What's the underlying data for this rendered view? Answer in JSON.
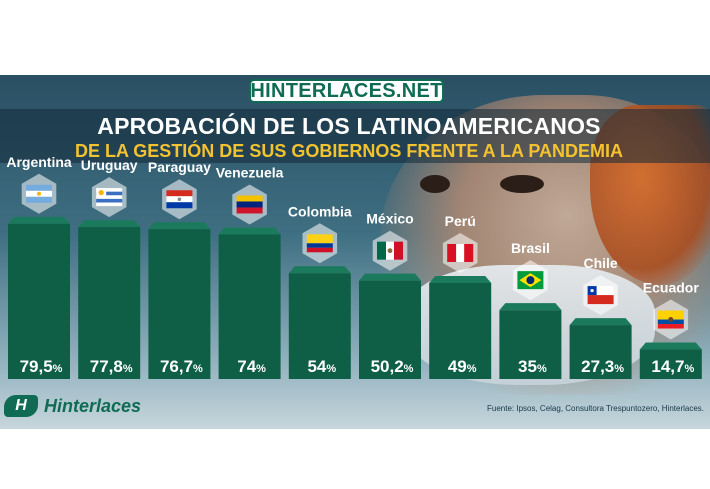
{
  "brand": {
    "site": "HINTERLACES.NET",
    "logo_mark": "H",
    "logo_text": "Hinterlaces"
  },
  "title_line1": "APROBACIÓN DE LOS LATINOAMERICANOS",
  "title_line2": "DE LA GESTIÓN DE SUS GOBIERNOS FRENTE A LA PANDEMIA",
  "source": "Fuente: Ipsos, Celag, Consultora Trespuntozero, Hinterlaces.",
  "colors": {
    "bar": "#0f5f47",
    "bar_top": "#1b7a5c",
    "accent": "#f2c230"
  },
  "chart_data": {
    "type": "bar",
    "title": "APROBACIÓN DE LOS LATINOAMERICANOS",
    "subtitle": "DE LA GESTIÓN DE SUS GOBIERNOS FRENTE A LA PANDEMIA",
    "categories": [
      "Argentina",
      "Uruguay",
      "Paraguay",
      "Venezuela",
      "Colombia",
      "México",
      "Perú",
      "Brasil",
      "Chile",
      "Ecuador"
    ],
    "values": [
      79.5,
      77.8,
      76.7,
      74,
      54,
      50.2,
      49,
      35,
      27.3,
      14.7
    ],
    "value_labels": [
      "79,5",
      "77,8",
      "76,7",
      "74",
      "54",
      "50,2",
      "49",
      "35",
      "27,3",
      "14,7"
    ],
    "unit": "%",
    "flags": [
      "argentina-flag-icon",
      "uruguay-flag-icon",
      "paraguay-flag-icon",
      "venezuela-flag-icon",
      "colombia-flag-icon",
      "mexico-flag-icon",
      "peru-flag-icon",
      "brazil-flag-icon",
      "chile-flag-icon",
      "ecuador-flag-icon"
    ],
    "xlabel": "",
    "ylabel": "",
    "ylim": [
      0,
      100
    ],
    "grid": false,
    "legend": "none"
  }
}
